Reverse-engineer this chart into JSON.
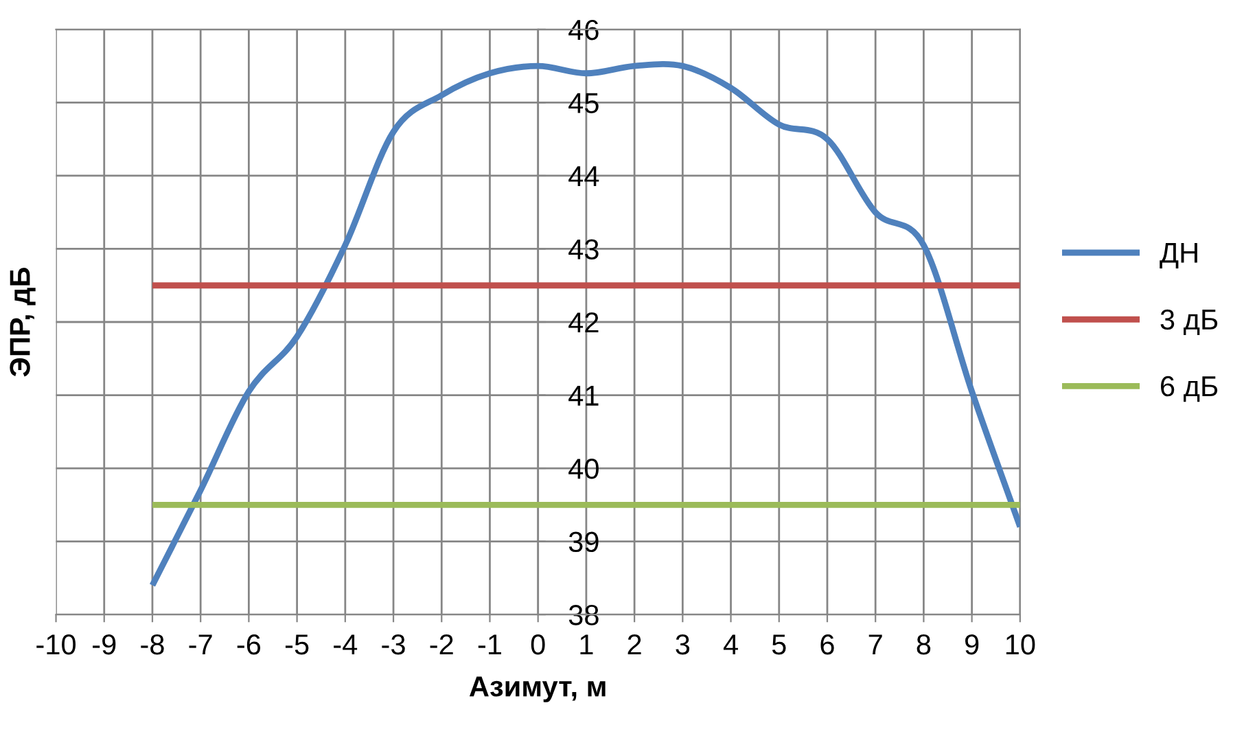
{
  "chart_data": {
    "type": "line",
    "xlabel": "Азимут, м",
    "ylabel": "ЭПР, дБ",
    "x": [
      -8,
      -7,
      -6,
      -5,
      -4,
      -3,
      -2,
      -1,
      0,
      1,
      2,
      3,
      4,
      5,
      6,
      7,
      8,
      9,
      10
    ],
    "series": [
      {
        "name": "ДН",
        "color": "#4f81bd",
        "values": [
          38.4,
          39.7,
          41.05,
          41.8,
          43.05,
          44.6,
          45.1,
          45.4,
          45.5,
          45.4,
          45.5,
          45.5,
          45.2,
          44.7,
          44.5,
          43.5,
          43.05,
          41.05,
          39.2
        ]
      },
      {
        "name": "3 дБ",
        "color": "#c0504d",
        "values": [
          42.5,
          42.5,
          42.5,
          42.5,
          42.5,
          42.5,
          42.5,
          42.5,
          42.5,
          42.5,
          42.5,
          42.5,
          42.5,
          42.5,
          42.5,
          42.5,
          42.5,
          42.5,
          42.5
        ]
      },
      {
        "name": "6 дБ",
        "color": "#9bbb59",
        "values": [
          39.5,
          39.5,
          39.5,
          39.5,
          39.5,
          39.5,
          39.5,
          39.5,
          39.5,
          39.5,
          39.5,
          39.5,
          39.5,
          39.5,
          39.5,
          39.5,
          39.5,
          39.5,
          39.5
        ]
      }
    ],
    "xlim": [
      -10,
      10
    ],
    "xticks": [
      -10,
      -9,
      -8,
      -7,
      -6,
      -5,
      -4,
      -3,
      -2,
      -1,
      0,
      1,
      2,
      3,
      4,
      5,
      6,
      7,
      8,
      9,
      10
    ],
    "ylim": [
      38,
      46
    ],
    "yticks": [
      38,
      39,
      40,
      41,
      42,
      43,
      44,
      45,
      46
    ],
    "grid": true,
    "legend": "right",
    "marker": "none",
    "line_style": "solid"
  }
}
